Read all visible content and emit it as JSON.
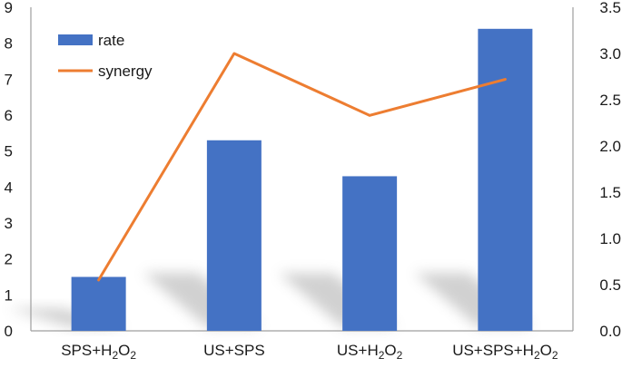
{
  "chart_data": {
    "type": "bar",
    "categories": [
      {
        "base": "SPS+H",
        "sub1": "2",
        "mid": "O",
        "sub2": "2",
        "tail": ""
      },
      {
        "base": "US+SPS",
        "sub1": "",
        "mid": "",
        "sub2": "",
        "tail": ""
      },
      {
        "base": "US+H",
        "sub1": "2",
        "mid": "O",
        "sub2": "2",
        "tail": ""
      },
      {
        "base": "US+SPS+H",
        "sub1": "2",
        "mid": "O",
        "sub2": "2",
        "tail": ""
      }
    ],
    "series": [
      {
        "name": "rate",
        "type": "bar",
        "axis": "left",
        "values": [
          1.5,
          5.3,
          4.3,
          8.4
        ],
        "color": "#4472C4"
      },
      {
        "name": "synergy",
        "type": "line",
        "axis": "right",
        "values": [
          0.55,
          3.0,
          2.33,
          2.72
        ],
        "color": "#ED7D31"
      }
    ],
    "y_left": {
      "min": 0,
      "max": 9,
      "ticks": [
        "0",
        "1",
        "2",
        "3",
        "4",
        "5",
        "6",
        "7",
        "8",
        "9"
      ]
    },
    "y_right": {
      "min": 0,
      "max": 3.5,
      "ticks": [
        "0.0",
        "0.5",
        "1.0",
        "1.5",
        "2.0",
        "2.5",
        "3.0",
        "3.5"
      ]
    },
    "legend": {
      "position": "top-left"
    },
    "grid": false
  }
}
